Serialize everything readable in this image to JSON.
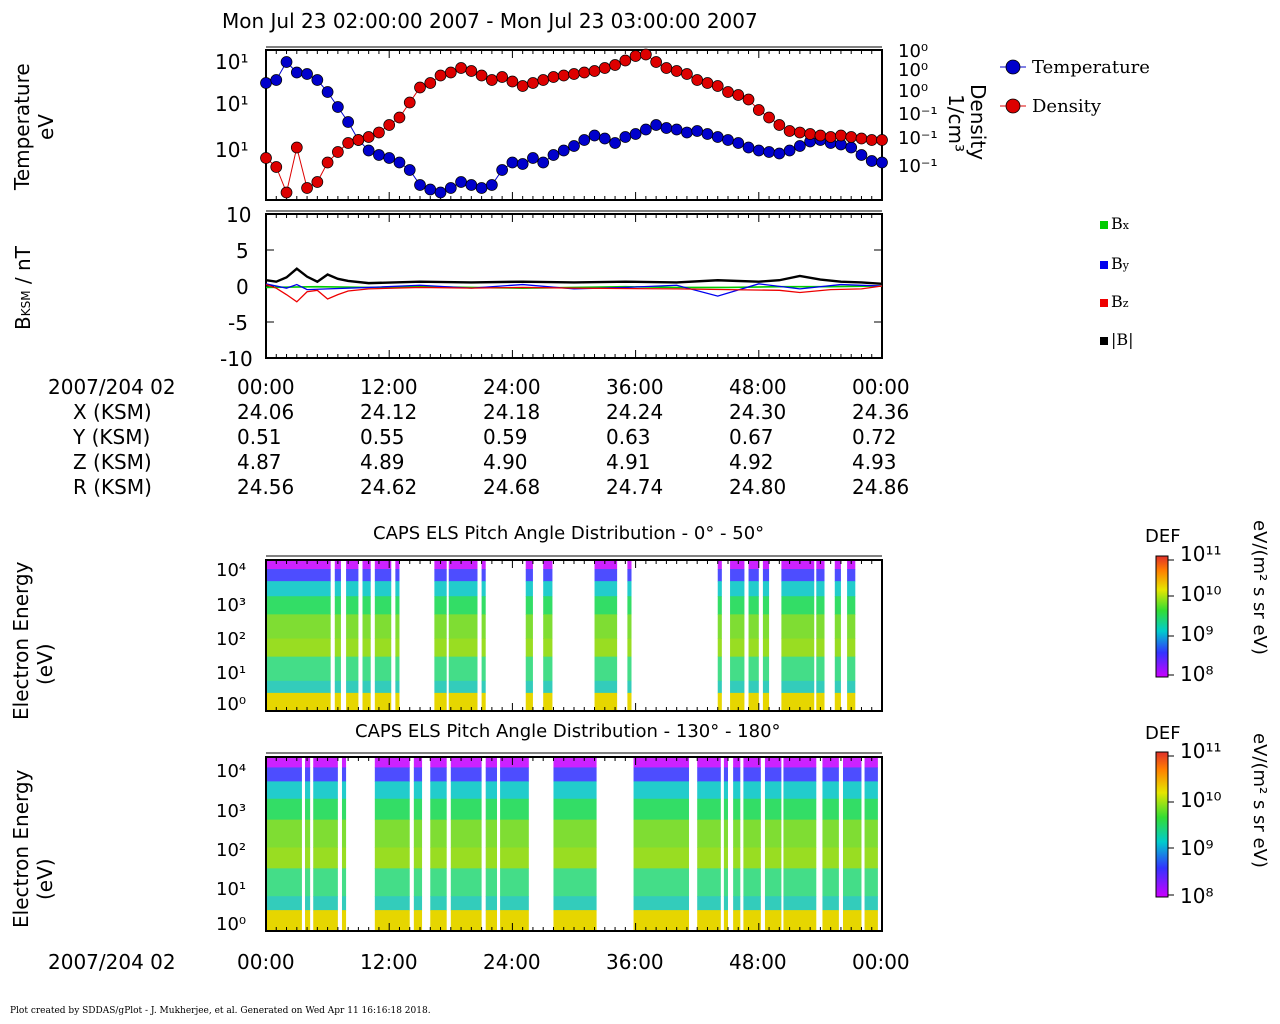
{
  "title": "Mon Jul 23 02:00:00 2007 - Mon Jul 23 03:00:00 2007",
  "footer": "Plot created by SDDAS/gPlot - J. Mukherjee, et al.  Generated on Wed Apr 11 16:16:18 2018.",
  "colors": {
    "temperature": "#0000cc",
    "density": "#dd0000",
    "bx": "#00cc00",
    "by": "#0000ee",
    "bz": "#ee0000",
    "bmag": "#000000"
  },
  "panel1": {
    "ylabel_line1": "Temperature",
    "ylabel_line2": "eV",
    "yticks_left": [
      "10¹",
      "10¹",
      "10¹"
    ],
    "yticks_right": [
      "10⁰",
      "10⁰",
      "10⁰",
      "10⁻¹",
      "10⁻¹",
      "10⁻¹"
    ],
    "right_label_line1": "Density",
    "right_label_line2": "1/cm³",
    "legend": [
      "Temperature",
      "Density"
    ]
  },
  "panel2": {
    "ylabel": "B",
    "ylabel_sub": "KSM",
    "ylabel_unit": " / nT",
    "yticks": [
      "10",
      "5",
      "0",
      "-5",
      "-10"
    ],
    "legend": [
      {
        "label": "B",
        "sub": "x"
      },
      {
        "label": "B",
        "sub": "y"
      },
      {
        "label": "B",
        "sub": "z"
      },
      {
        "label": "|B|",
        "sub": ""
      }
    ]
  },
  "ephemeris": {
    "header": "2007/204 02",
    "times": [
      "00:00",
      "12:00",
      "24:00",
      "36:00",
      "48:00",
      "00:00"
    ],
    "rows": [
      {
        "label": "X (KSM)",
        "values": [
          "24.06",
          "24.12",
          "24.18",
          "24.24",
          "24.30",
          "24.36"
        ]
      },
      {
        "label": "Y (KSM)",
        "values": [
          "0.51",
          "0.55",
          "0.59",
          "0.63",
          "0.67",
          "0.72"
        ]
      },
      {
        "label": "Z (KSM)",
        "values": [
          "4.87",
          "4.89",
          "4.90",
          "4.91",
          "4.92",
          "4.93"
        ]
      },
      {
        "label": "R (KSM)",
        "values": [
          "24.56",
          "24.62",
          "24.68",
          "24.74",
          "24.80",
          "24.86"
        ]
      }
    ]
  },
  "spectro1": {
    "title": "CAPS ELS Pitch Angle Distribution - 0° - 50°",
    "ylabel_line1": "Electron Energy",
    "ylabel_line2": "(eV)",
    "yticks": [
      "10⁴",
      "10³",
      "10²",
      "10¹",
      "10⁰"
    ],
    "cbar_title": "DEF",
    "cbar_ticks": [
      "10¹¹",
      "10¹⁰",
      "10⁹",
      "10⁸"
    ],
    "cbar_unit": "eV/(m² s sr eV)"
  },
  "spectro2": {
    "title": "CAPS ELS Pitch Angle Distribution - 130° - 180°",
    "ylabel_line1": "Electron Energy",
    "ylabel_line2": "(eV)",
    "yticks": [
      "10⁴",
      "10³",
      "10²",
      "10¹",
      "10⁰"
    ],
    "cbar_title": "DEF",
    "cbar_ticks": [
      "10¹¹",
      "10¹⁰",
      "10⁹",
      "10⁸"
    ],
    "cbar_unit": "eV/(m² s sr eV)"
  },
  "bottom_axis": {
    "header": "2007/204 02",
    "times": [
      "00:00",
      "12:00",
      "24:00",
      "36:00",
      "48:00",
      "00:00"
    ]
  },
  "chart_data": [
    {
      "type": "scatter",
      "name": "plasma-moments",
      "title": "Mon Jul 23 02:00:00 2007 - Mon Jul 23 03:00:00 2007",
      "x_unit": "minutes after 02:00",
      "series": [
        {
          "name": "Temperature",
          "x": [
            0,
            1,
            2,
            3,
            4,
            5,
            6,
            7,
            8,
            9,
            10,
            11,
            12,
            13,
            14,
            15,
            16,
            17,
            18,
            19,
            20,
            21,
            22,
            23,
            24,
            25,
            26,
            27,
            28,
            29,
            30,
            31,
            32,
            33,
            34,
            35,
            36,
            37,
            38,
            39,
            40,
            41,
            42,
            43,
            44,
            45,
            46,
            47,
            48,
            49,
            50,
            51,
            52,
            53,
            54,
            55,
            56,
            57,
            58,
            59,
            60
          ],
          "y": [
            0.78,
            0.8,
            0.92,
            0.85,
            0.84,
            0.8,
            0.72,
            0.62,
            0.52,
            0.4,
            0.33,
            0.3,
            0.28,
            0.25,
            0.2,
            0.1,
            0.07,
            0.05,
            0.08,
            0.12,
            0.1,
            0.08,
            0.1,
            0.2,
            0.25,
            0.24,
            0.28,
            0.25,
            0.3,
            0.33,
            0.36,
            0.4,
            0.43,
            0.41,
            0.38,
            0.42,
            0.44,
            0.47,
            0.5,
            0.48,
            0.47,
            0.45,
            0.46,
            0.44,
            0.42,
            0.4,
            0.38,
            0.35,
            0.33,
            0.32,
            0.31,
            0.33,
            0.36,
            0.39,
            0.4,
            0.38,
            0.37,
            0.35,
            0.3,
            0.26,
            0.25
          ]
        },
        {
          "name": "Density",
          "x": [
            0,
            1,
            2,
            3,
            4,
            5,
            6,
            7,
            8,
            9,
            10,
            11,
            12,
            13,
            14,
            15,
            16,
            17,
            18,
            19,
            20,
            21,
            22,
            23,
            24,
            25,
            26,
            27,
            28,
            29,
            30,
            31,
            32,
            33,
            34,
            35,
            36,
            37,
            38,
            39,
            40,
            41,
            42,
            43,
            44,
            45,
            46,
            47,
            48,
            49,
            50,
            51,
            52,
            53,
            54,
            55,
            56,
            57,
            58,
            59,
            60
          ],
          "y": [
            0.28,
            0.22,
            0.05,
            0.35,
            0.08,
            0.12,
            0.25,
            0.32,
            0.38,
            0.4,
            0.42,
            0.45,
            0.5,
            0.55,
            0.65,
            0.75,
            0.78,
            0.83,
            0.85,
            0.88,
            0.86,
            0.83,
            0.8,
            0.82,
            0.79,
            0.76,
            0.78,
            0.8,
            0.82,
            0.83,
            0.84,
            0.85,
            0.86,
            0.88,
            0.9,
            0.93,
            0.96,
            0.97,
            0.92,
            0.88,
            0.86,
            0.84,
            0.8,
            0.78,
            0.76,
            0.72,
            0.7,
            0.67,
            0.6,
            0.55,
            0.5,
            0.46,
            0.45,
            0.44,
            0.43,
            0.42,
            0.43,
            0.42,
            0.41,
            0.4,
            0.4
          ]
        }
      ]
    },
    {
      "type": "line",
      "name": "magnetic-field",
      "x_unit": "minutes after 02:00",
      "ylim": [
        -10,
        10
      ],
      "series": [
        {
          "name": "Bx",
          "x": [
            0,
            5,
            10,
            15,
            20,
            25,
            30,
            35,
            40,
            45,
            50,
            55,
            60
          ],
          "y": [
            -0.2,
            -0.1,
            -0.2,
            -0.1,
            -0.2,
            -0.3,
            -0.2,
            -0.1,
            -0.2,
            -0.2,
            -0.1,
            -0.1,
            0
          ]
        },
        {
          "name": "By",
          "x": [
            0,
            2,
            3,
            4,
            6,
            10,
            15,
            20,
            25,
            30,
            35,
            40,
            44,
            48,
            52,
            56,
            60
          ],
          "y": [
            0.3,
            -0.3,
            0.2,
            -0.5,
            -0.4,
            -0.2,
            0.1,
            -0.3,
            0.2,
            -0.4,
            -0.2,
            0.1,
            -1.4,
            0.3,
            -0.4,
            0.2,
            0
          ]
        },
        {
          "name": "Bz",
          "x": [
            0,
            1,
            2,
            3,
            4,
            5,
            6,
            7,
            8,
            10,
            15,
            20,
            25,
            30,
            40,
            45,
            50,
            52,
            55,
            58,
            60
          ],
          "y": [
            0.2,
            -0.3,
            -1.2,
            -2.2,
            -0.8,
            -0.6,
            -1.8,
            -1.2,
            -0.7,
            -0.4,
            -0.2,
            -0.3,
            -0.2,
            -0.3,
            -0.4,
            -0.5,
            -0.6,
            -0.9,
            -0.5,
            -0.4,
            0
          ]
        },
        {
          "name": "|B|",
          "x": [
            0,
            1,
            2,
            3,
            4,
            5,
            6,
            7,
            8,
            10,
            15,
            20,
            25,
            30,
            35,
            40,
            44,
            48,
            50,
            52,
            54,
            56,
            58,
            60
          ],
          "y": [
            0.8,
            0.6,
            1.2,
            2.4,
            1.3,
            0.6,
            1.6,
            1.0,
            0.7,
            0.4,
            0.6,
            0.5,
            0.6,
            0.5,
            0.6,
            0.5,
            0.8,
            0.6,
            0.8,
            1.4,
            0.9,
            0.6,
            0.5,
            0.3
          ]
        }
      ]
    },
    {
      "type": "heatmap",
      "name": "caps-els-0-50",
      "title": "CAPS ELS Pitch Angle Distribution - 0° - 50°",
      "ylabel": "Electron Energy (eV)",
      "x_unit": "minutes after 02:00",
      "colorbar": "DEF",
      "colorbar_range": [
        "10⁸",
        "10¹¹"
      ],
      "data_intervals": [
        [
          0,
          6.3
        ],
        [
          6.7,
          7.3
        ],
        [
          7.8,
          9.0
        ],
        [
          9.4,
          10.2
        ],
        [
          10.6,
          12.2
        ],
        [
          12.6,
          13.0
        ],
        [
          16.4,
          17.6
        ],
        [
          17.8,
          20.6
        ],
        [
          21.0,
          21.4
        ],
        [
          25.3,
          26.0
        ],
        [
          27.0,
          27.9
        ],
        [
          32.0,
          34.2
        ],
        [
          35.2,
          35.6
        ],
        [
          44.0,
          44.4
        ],
        [
          45.2,
          46.6
        ],
        [
          47.0,
          48.0
        ],
        [
          48.4,
          49.0
        ],
        [
          50.2,
          53.4
        ],
        [
          53.6,
          54.4
        ],
        [
          55.4,
          56.0
        ],
        [
          56.6,
          57.4
        ]
      ]
    },
    {
      "type": "heatmap",
      "name": "caps-els-130-180",
      "title": "CAPS ELS Pitch Angle Distribution - 130° - 180°",
      "ylabel": "Electron Energy (eV)",
      "x_unit": "minutes after 02:00",
      "colorbar": "DEF",
      "colorbar_range": [
        "10⁸",
        "10¹¹"
      ],
      "data_intervals": [
        [
          0,
          3.5
        ],
        [
          3.8,
          4.3
        ],
        [
          4.6,
          7.0
        ],
        [
          7.4,
          7.8
        ],
        [
          10.6,
          14.0
        ],
        [
          14.4,
          15.2
        ],
        [
          16.0,
          17.6
        ],
        [
          18.0,
          21.0
        ],
        [
          21.4,
          22.5
        ],
        [
          22.8,
          25.6
        ],
        [
          28.0,
          32.2
        ],
        [
          35.8,
          41.2
        ],
        [
          42.0,
          44.3
        ],
        [
          44.6,
          45.0
        ],
        [
          45.5,
          46.2
        ],
        [
          46.5,
          48.2
        ],
        [
          48.6,
          50.2
        ],
        [
          50.4,
          53.6
        ],
        [
          54.2,
          55.8
        ],
        [
          56.2,
          58.0
        ],
        [
          58.3,
          59.6
        ]
      ]
    }
  ]
}
